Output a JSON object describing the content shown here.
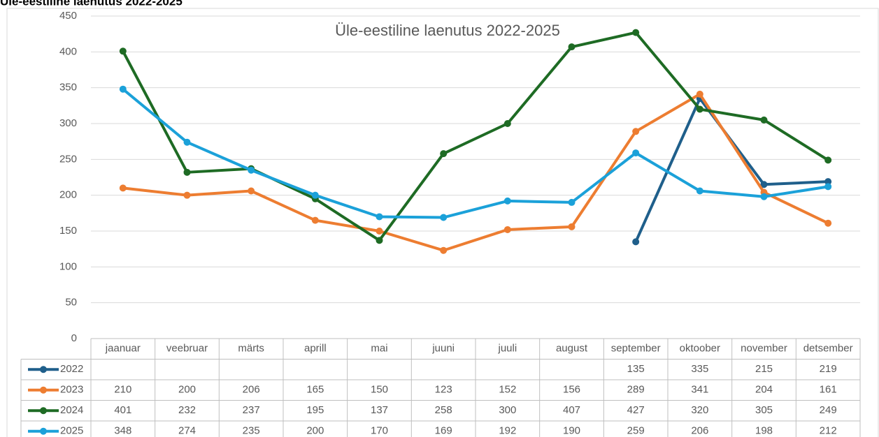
{
  "header": {
    "title": "Üle-eestiline laenutus 2022-2025"
  },
  "chart_data": {
    "type": "line",
    "title": "Üle-eestiline laenutus 2022-2025",
    "categories": [
      "jaanuar",
      "veebruar",
      "märts",
      "aprill",
      "mai",
      "juuni",
      "juuli",
      "august",
      "september",
      "oktoober",
      "november",
      "detsember"
    ],
    "series": [
      {
        "name": "2022",
        "color": "#1f5f8b",
        "values": [
          null,
          null,
          null,
          null,
          null,
          null,
          null,
          null,
          135,
          335,
          215,
          219
        ]
      },
      {
        "name": "2023",
        "color": "#ed7d31",
        "values": [
          210,
          200,
          206,
          165,
          150,
          123,
          152,
          156,
          289,
          341,
          204,
          161
        ]
      },
      {
        "name": "2024",
        "color": "#1e6b24",
        "values": [
          401,
          232,
          237,
          195,
          137,
          258,
          300,
          407,
          427,
          320,
          305,
          249
        ]
      },
      {
        "name": "2025",
        "color": "#1ba1d9",
        "values": [
          348,
          274,
          235,
          200,
          170,
          169,
          192,
          190,
          259,
          206,
          198,
          212
        ]
      }
    ],
    "ylim": [
      0,
      450
    ],
    "yticks": [
      0,
      50,
      100,
      150,
      200,
      250,
      300,
      350,
      400,
      450
    ],
    "grid": true
  }
}
